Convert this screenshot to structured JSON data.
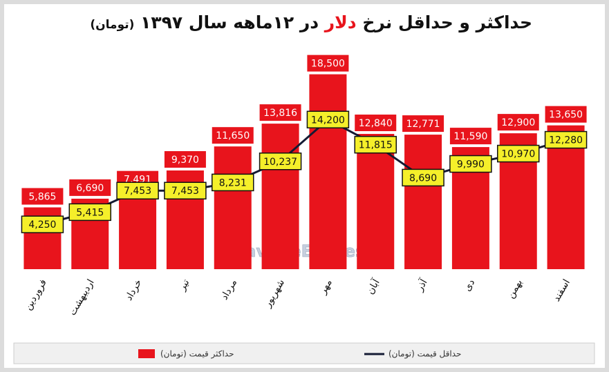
{
  "chart_data": {
    "type": "bar",
    "title": [
      "حداکثر و حداقل نرخ",
      "دلار",
      "در ۱۲ماهه سال ۱۳۹۷"
    ],
    "subtitle": "(تومان)",
    "watermark": "@NavadeEghtesadi",
    "categories": [
      "فروردین",
      "اردیبهشت",
      "خرداد",
      "تیر",
      "مرداد",
      "شهریور",
      "مهر",
      "آبان",
      "آذر",
      "دی",
      "بهمن",
      "اسفند"
    ],
    "ylim": [
      0,
      19000
    ],
    "series": [
      {
        "name": "حداکثر قیمت (تومان)",
        "color": "#e8141c",
        "type": "bar",
        "values": [
          5865,
          6690,
          7491,
          9370,
          11650,
          13816,
          18500,
          12840,
          12771,
          11590,
          12900,
          13650
        ],
        "value_labels": [
          "5,865",
          "6,690",
          "7,491",
          "9,370",
          "11,650",
          "13,816",
          "18,500",
          "12,840",
          "12,771",
          "11,590",
          "12,900",
          "13,650"
        ]
      },
      {
        "name": "حداقل قیمت (تومان)",
        "color": "#141a33",
        "type": "line",
        "values": [
          4250,
          5415,
          7453,
          7453,
          8231,
          10237,
          14200,
          11815,
          8690,
          9990,
          10970,
          12280
        ],
        "value_labels": [
          "4,250",
          "5,415",
          "7,453",
          "7,453",
          "8,231",
          "10,237",
          "14,200",
          "11,815",
          "8,690",
          "9,990",
          "10,970",
          "12,280"
        ]
      }
    ]
  }
}
